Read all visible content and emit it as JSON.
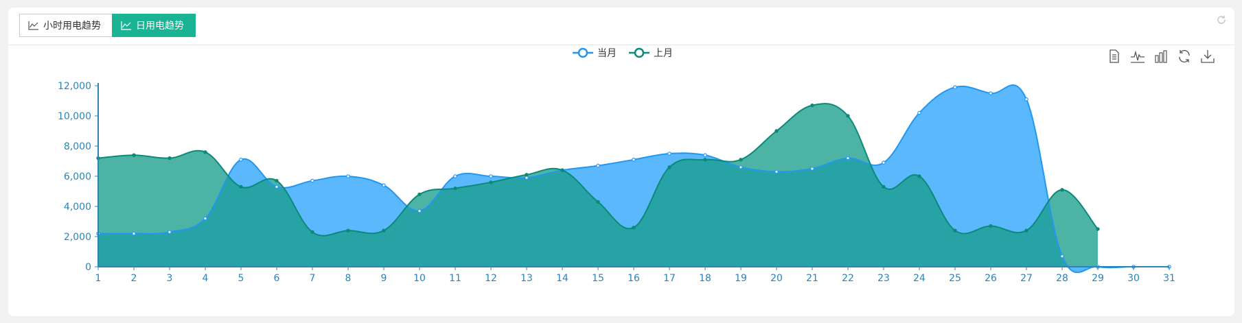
{
  "tabs": [
    {
      "label": "小时用电趋势",
      "active": false
    },
    {
      "label": "日用电趋势",
      "active": true
    }
  ],
  "colors": {
    "tab_active_bg": "#1ab394",
    "current_series": "#2196f3",
    "current_fill": "#5cb8fc",
    "previous_series": "#0a8a78",
    "previous_fill": "#1a9e8c",
    "axis": "#2c83b5"
  },
  "toolbox": [
    "data-view-icon",
    "line-chart-icon",
    "bar-chart-icon",
    "restore-icon",
    "save-image-icon"
  ],
  "chart_data": {
    "type": "area",
    "smooth": true,
    "categories": [
      "1",
      "2",
      "3",
      "4",
      "5",
      "6",
      "7",
      "8",
      "9",
      "10",
      "11",
      "12",
      "13",
      "14",
      "15",
      "16",
      "17",
      "18",
      "19",
      "20",
      "21",
      "22",
      "23",
      "24",
      "25",
      "26",
      "27",
      "28",
      "29",
      "30",
      "31"
    ],
    "ylim": [
      0,
      12000
    ],
    "yticks": [
      0,
      2000,
      4000,
      6000,
      8000,
      10000,
      12000
    ],
    "ytick_labels": [
      "0",
      "2,000",
      "4,000",
      "6,000",
      "8,000",
      "10,000",
      "12,000"
    ],
    "legend": "top-center",
    "grid": false,
    "series": [
      {
        "name": "当月",
        "values": [
          2200,
          2200,
          2300,
          3200,
          7100,
          5300,
          5700,
          6000,
          5400,
          3700,
          6000,
          6000,
          5900,
          6400,
          6700,
          7100,
          7500,
          7400,
          6600,
          6300,
          6500,
          7200,
          6900,
          10200,
          11900,
          11500,
          11100,
          700,
          0,
          0,
          0
        ]
      },
      {
        "name": "上月",
        "values": [
          7200,
          7400,
          7200,
          7600,
          5300,
          5700,
          2300,
          2400,
          2400,
          4800,
          5200,
          5600,
          6100,
          6400,
          4300,
          2600,
          6600,
          7100,
          7100,
          9000,
          10700,
          10000,
          5300,
          6000,
          2400,
          2700,
          2400,
          5100,
          2500,
          null,
          null
        ]
      }
    ]
  }
}
